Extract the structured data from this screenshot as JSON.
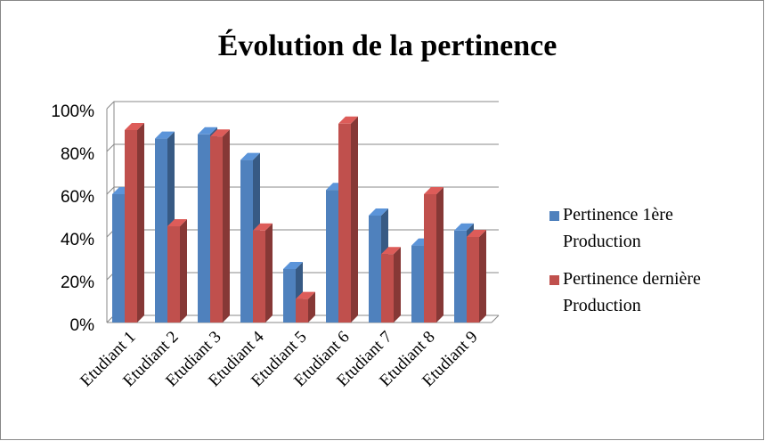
{
  "chart_data": {
    "type": "bar3d",
    "title": "Évolution de la pertinence",
    "categories": [
      "Etudiant 1",
      "Etudiant 2",
      "Etudiant 3",
      "Etudiant 4",
      "Etudiant 5",
      "Etudiant 6",
      "Etudiant 7",
      "Etudiant 8",
      "Etudiant 9"
    ],
    "series": [
      {
        "name": "Pertinence 1ère Production",
        "color": "#4f81bd",
        "values": [
          60,
          86,
          88,
          76,
          25,
          62,
          50,
          36,
          43
        ]
      },
      {
        "name": "Pertinence dernière Production",
        "color": "#c0504d",
        "values": [
          90,
          45,
          87,
          43,
          11,
          93,
          32,
          60,
          40
        ]
      }
    ],
    "ylim": [
      0,
      100
    ],
    "yticks": [
      {
        "value": 0,
        "label": "0%"
      },
      {
        "value": 20,
        "label": "20%"
      },
      {
        "value": 40,
        "label": "40%"
      },
      {
        "value": 60,
        "label": "60%"
      },
      {
        "value": 80,
        "label": "80%"
      },
      {
        "value": 100,
        "label": "100%"
      }
    ],
    "grid": true,
    "legend": "right"
  }
}
